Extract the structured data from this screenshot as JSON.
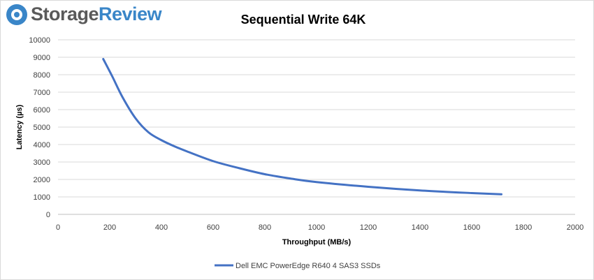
{
  "logo": {
    "text_main": "Storage",
    "text_accent": "Review"
  },
  "chart_data": {
    "type": "line",
    "title": "Sequential Write 64K",
    "xlabel": "Throughput (MB/s)",
    "ylabel": "Latency (µs)",
    "xlim": [
      0,
      2000
    ],
    "ylim": [
      0,
      10000
    ],
    "xticks": [
      0,
      200,
      400,
      600,
      800,
      1000,
      1200,
      1400,
      1600,
      1800,
      2000
    ],
    "yticks": [
      0,
      1000,
      2000,
      3000,
      4000,
      5000,
      6000,
      7000,
      8000,
      9000,
      10000
    ],
    "grid": "horizontal",
    "legend_position": "bottom",
    "series": [
      {
        "name": "Dell EMC PowerEdge R640 4 SAS3 SSDs",
        "color": "#4472c4",
        "x": [
          175,
          210,
          250,
          300,
          350,
          400,
          450,
          500,
          600,
          700,
          800,
          900,
          1000,
          1200,
          1400,
          1600,
          1715
        ],
        "y": [
          8900,
          7900,
          6700,
          5500,
          4700,
          4250,
          3900,
          3600,
          3050,
          2650,
          2300,
          2050,
          1850,
          1580,
          1370,
          1220,
          1150
        ]
      }
    ]
  }
}
